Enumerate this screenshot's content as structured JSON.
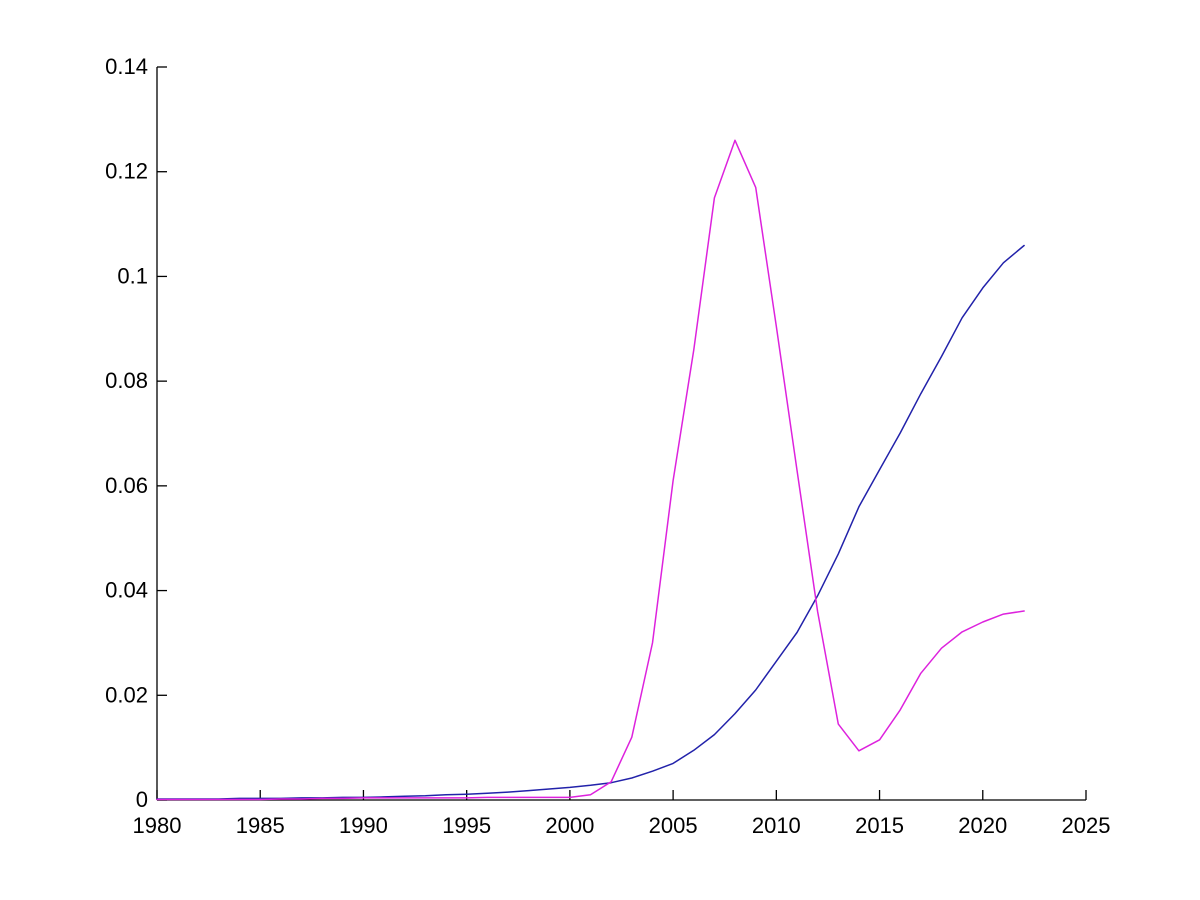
{
  "figure": {
    "background_color": "#ffffff",
    "axis_color": "#000000"
  },
  "chart_data": {
    "type": "line",
    "title": "",
    "xlabel": "",
    "ylabel": "",
    "grid": false,
    "legend": "none",
    "xlim": [
      1980,
      2025
    ],
    "ylim": [
      0,
      0.14
    ],
    "xticks": [
      1980,
      1985,
      1990,
      1995,
      2000,
      2005,
      2010,
      2015,
      2020,
      2025
    ],
    "xtick_labels": [
      "1980",
      "1985",
      "1990",
      "1995",
      "2000",
      "2005",
      "2010",
      "2015",
      "2020",
      "2025"
    ],
    "yticks": [
      0,
      0.02,
      0.04,
      0.06,
      0.08,
      0.1,
      0.12,
      0.14
    ],
    "ytick_labels": [
      "0",
      "0.02",
      "0.04",
      "0.06",
      "0.08",
      "0.1",
      "0.12",
      "0.14"
    ],
    "x": [
      1980,
      1981,
      1982,
      1983,
      1984,
      1985,
      1986,
      1987,
      1988,
      1989,
      1990,
      1991,
      1992,
      1993,
      1994,
      1995,
      1996,
      1997,
      1998,
      1999,
      2000,
      2001,
      2002,
      2003,
      2004,
      2005,
      2006,
      2007,
      2008,
      2009,
      2010,
      2011,
      2012,
      2013,
      2014,
      2015,
      2016,
      2017,
      2018,
      2019,
      2020,
      2021,
      2022
    ],
    "series": [
      {
        "name": "blue-curve",
        "color": "#2222AA",
        "values": [
          0.0002,
          0.0002,
          0.0002,
          0.0002,
          0.0003,
          0.0003,
          0.0003,
          0.0004,
          0.0004,
          0.0005,
          0.0005,
          0.0006,
          0.0007,
          0.0008,
          0.001,
          0.0011,
          0.0013,
          0.0015,
          0.0018,
          0.0021,
          0.0024,
          0.0028,
          0.0033,
          0.0042,
          0.0055,
          0.007,
          0.0095,
          0.0125,
          0.0165,
          0.021,
          0.0265,
          0.032,
          0.039,
          0.047,
          0.056,
          0.0631,
          0.0701,
          0.0776,
          0.0847,
          0.0921,
          0.0978,
          0.1026,
          0.1059
        ]
      },
      {
        "name": "magenta-curve",
        "color": "#DD22DD",
        "values": [
          0.0001,
          0.0001,
          0.0001,
          0.0001,
          0.0001,
          0.0001,
          0.0002,
          0.0002,
          0.0003,
          0.0003,
          0.0004,
          0.0004,
          0.0004,
          0.0004,
          0.0004,
          0.0004,
          0.0005,
          0.0005,
          0.0005,
          0.0005,
          0.0005,
          0.001,
          0.0035,
          0.012,
          0.03,
          0.061,
          0.086,
          0.115,
          0.126,
          0.117,
          0.0905,
          0.063,
          0.036,
          0.0145,
          0.0094,
          0.0115,
          0.0172,
          0.0242,
          0.029,
          0.0321,
          0.034,
          0.0355,
          0.0361
        ]
      }
    ]
  }
}
